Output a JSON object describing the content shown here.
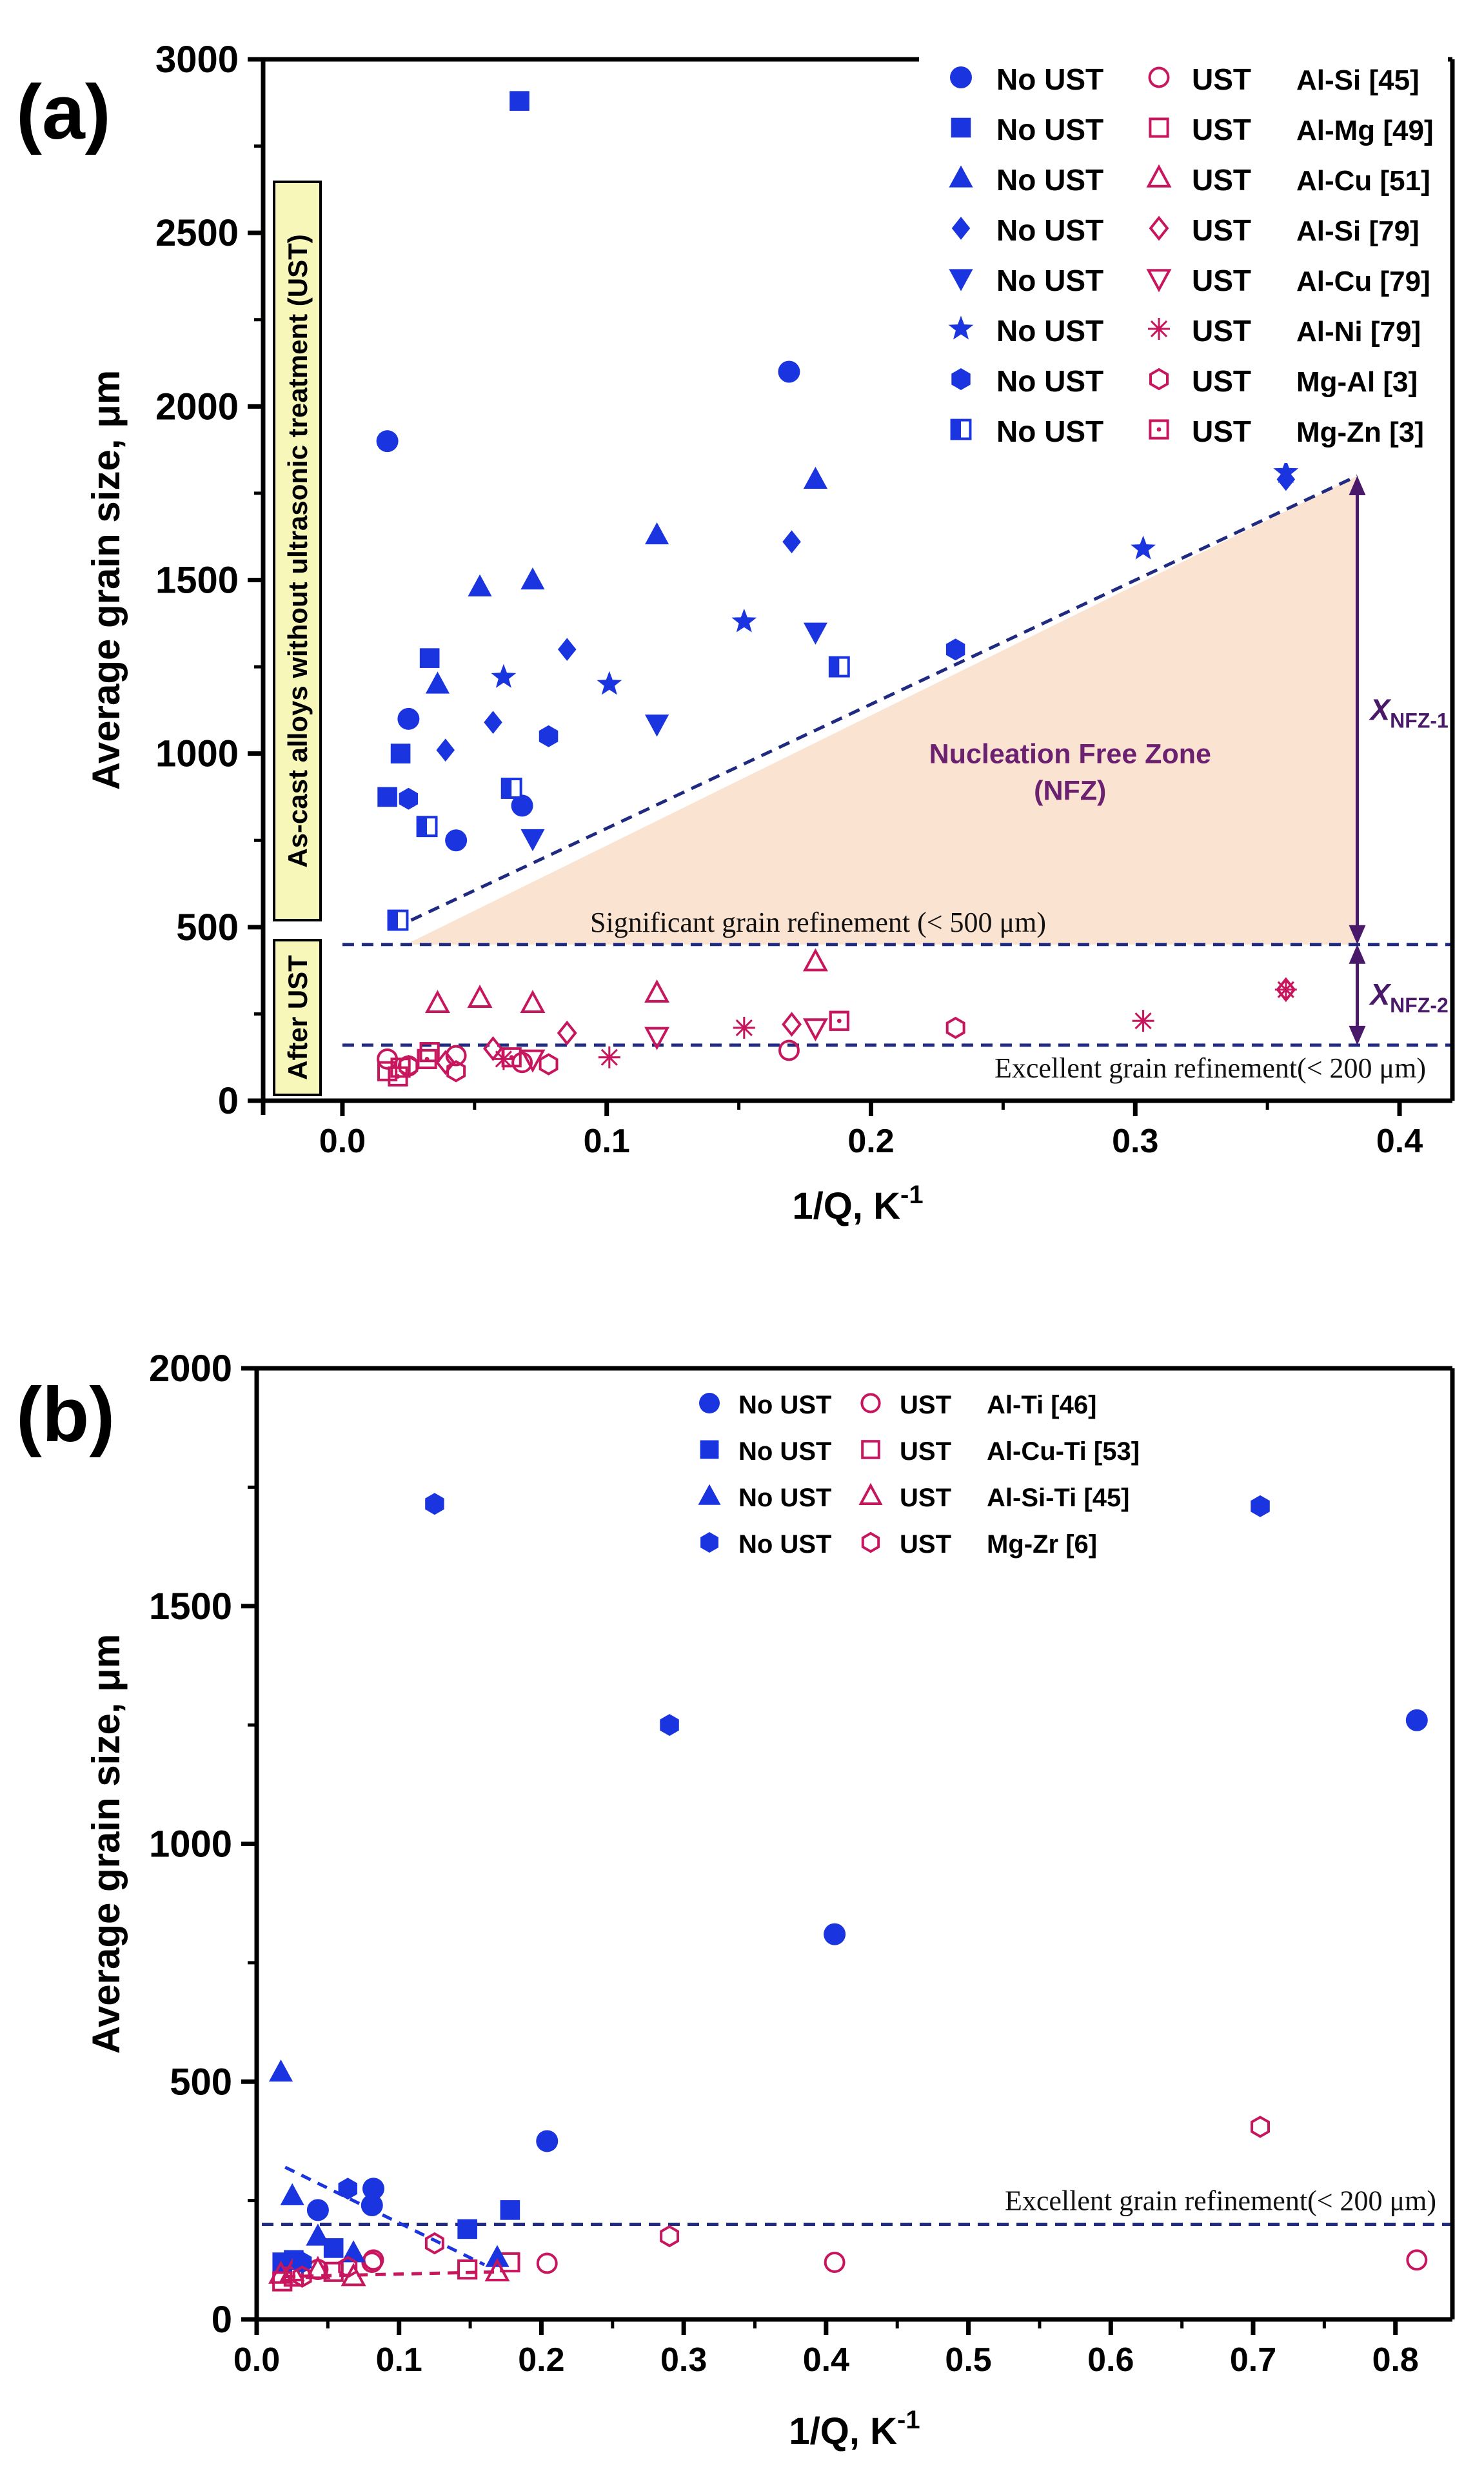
{
  "chart_data": [
    {
      "panel_label": "(a)",
      "type": "scatter",
      "xlabel": "1/Q, K",
      "xlabel_sup": "-1",
      "ylabel": "Average grain size, μm",
      "xlim": [
        -0.03,
        0.42
      ],
      "ylim": [
        0,
        3000
      ],
      "xticks": [
        0.0,
        0.1,
        0.2,
        0.3,
        0.4
      ],
      "xtick_labels": [
        "0.0",
        "0.1",
        "0.2",
        "0.3",
        "0.4"
      ],
      "yticks": [
        0,
        500,
        1000,
        1500,
        2000,
        2500,
        3000
      ],
      "ytick_labels": [
        "0",
        "500",
        "1000",
        "1500",
        "2000",
        "2500",
        "3000"
      ],
      "legend_position": "top-right",
      "series": [
        {
          "name": "No UST",
          "alloy": "Al-Si [45]",
          "marker": "circle",
          "filled": true,
          "color": "#1a35e0",
          "x": [
            0.017,
            0.025,
            0.043,
            0.068,
            0.169
          ],
          "y": [
            1900,
            1100,
            750,
            850,
            2100
          ]
        },
        {
          "name": "UST",
          "alloy": "Al-Si [45]",
          "marker": "circle",
          "filled": false,
          "color": "#c8165e",
          "x": [
            0.017,
            0.025,
            0.043,
            0.068,
            0.169
          ],
          "y": [
            120,
            100,
            130,
            110,
            145
          ]
        },
        {
          "name": "No UST",
          "alloy": "Al-Mg [49]",
          "marker": "square",
          "filled": true,
          "color": "#1a35e0",
          "x": [
            0.017,
            0.022,
            0.033,
            0.067
          ],
          "y": [
            875,
            1000,
            1275,
            2880
          ]
        },
        {
          "name": "UST",
          "alloy": "Al-Mg [49]",
          "marker": "square",
          "filled": false,
          "color": "#c8165e",
          "x": [
            0.017,
            0.022,
            0.033,
            0.188
          ],
          "y": [
            85,
            95,
            140,
            230
          ]
        },
        {
          "name": "No UST",
          "alloy": "Al-Cu [51]",
          "marker": "triangle-up",
          "filled": true,
          "color": "#1a35e0",
          "x": [
            0.036,
            0.052,
            0.072,
            0.119,
            0.179
          ],
          "y": [
            1200,
            1480,
            1500,
            1630,
            1790
          ]
        },
        {
          "name": "UST",
          "alloy": "Al-Cu [51]",
          "marker": "triangle-up",
          "filled": false,
          "color": "#c8165e",
          "x": [
            0.036,
            0.052,
            0.072,
            0.119,
            0.179
          ],
          "y": [
            280,
            295,
            280,
            310,
            400
          ]
        },
        {
          "name": "No UST",
          "alloy": "Al-Si [79]",
          "marker": "diamond",
          "filled": true,
          "color": "#1a35e0",
          "x": [
            0.039,
            0.057,
            0.085,
            0.17,
            0.357
          ],
          "y": [
            1010,
            1090,
            1300,
            1610,
            1790
          ]
        },
        {
          "name": "UST",
          "alloy": "Al-Si [79]",
          "marker": "diamond",
          "filled": false,
          "color": "#c8165e",
          "x": [
            0.039,
            0.057,
            0.085,
            0.17,
            0.357
          ],
          "y": [
            110,
            150,
            195,
            220,
            320
          ]
        },
        {
          "name": "No UST",
          "alloy": "Al-Cu [79]",
          "marker": "triangle-down",
          "filled": true,
          "color": "#1a35e0",
          "x": [
            0.072,
            0.119,
            0.179
          ],
          "y": [
            755,
            1085,
            1350
          ]
        },
        {
          "name": "UST",
          "alloy": "Al-Cu [79]",
          "marker": "triangle-down",
          "filled": false,
          "color": "#c8165e",
          "x": [
            0.072,
            0.119,
            0.179
          ],
          "y": [
            120,
            185,
            210
          ]
        },
        {
          "name": "No UST",
          "alloy": "Al-Ni [79]",
          "marker": "star",
          "filled": true,
          "color": "#1a35e0",
          "x": [
            0.061,
            0.101,
            0.152,
            0.303,
            0.357
          ],
          "y": [
            1220,
            1200,
            1380,
            1590,
            1810
          ]
        },
        {
          "name": "UST",
          "alloy": "Al-Ni [79]",
          "marker": "asterisk",
          "filled": false,
          "color": "#c8165e",
          "x": [
            0.061,
            0.101,
            0.152,
            0.303,
            0.357
          ],
          "y": [
            120,
            125,
            210,
            230,
            320
          ]
        },
        {
          "name": "No UST",
          "alloy": "Mg-Al [3]",
          "marker": "hexagon",
          "filled": true,
          "color": "#1a35e0",
          "x": [
            0.025,
            0.043,
            0.078,
            0.232
          ],
          "y": [
            870,
            750,
            1050,
            1300
          ]
        },
        {
          "name": "UST",
          "alloy": "Mg-Al [3]",
          "marker": "hexagon",
          "filled": false,
          "color": "#c8165e",
          "x": [
            0.025,
            0.043,
            0.078,
            0.232
          ],
          "y": [
            100,
            85,
            105,
            210
          ]
        },
        {
          "name": "No UST",
          "alloy": "Mg-Zn [3]",
          "marker": "half-square",
          "filled": true,
          "color": "#1a35e0",
          "x": [
            0.021,
            0.032,
            0.064,
            0.188
          ],
          "y": [
            520,
            790,
            900,
            1250
          ]
        },
        {
          "name": "UST",
          "alloy": "Mg-Zn [3]",
          "marker": "dotted-square",
          "filled": false,
          "color": "#c8165e",
          "x": [
            0.021,
            0.032,
            0.064,
            0.188
          ],
          "y": [
            70,
            120,
            125,
            230
          ]
        }
      ],
      "reference_lines": [
        {
          "y": 450,
          "label": "Significant grain refinement (< 500 μm)"
        },
        {
          "y": 160,
          "label": "Excellent grain refinement(< 200 μm)"
        }
      ],
      "nfz": {
        "label_line1": "Nucleation Free Zone",
        "label_line2": "(NFZ)",
        "corners": [
          [
            0.024,
            450
          ],
          [
            0.384,
            450
          ],
          [
            0.384,
            1800
          ]
        ]
      },
      "arrows": [
        {
          "label": "X",
          "sub": "NFZ-1",
          "x": 0.384,
          "y_from": 450,
          "y_to": 1800
        },
        {
          "label": "X",
          "sub": "NFZ-2",
          "x": 0.384,
          "y_from": 160,
          "y_to": 450
        }
      ],
      "side_labels": {
        "upper": "As-cast alloys without ultrasonic treatment (UST)",
        "lower": "After UST"
      }
    },
    {
      "panel_label": "(b)",
      "type": "scatter",
      "xlabel": "1/Q, K",
      "xlabel_sup": "-1",
      "ylabel": "Average grain size, μm",
      "xlim": [
        0.0,
        0.84
      ],
      "ylim": [
        0,
        2000
      ],
      "xticks": [
        0.0,
        0.1,
        0.2,
        0.3,
        0.4,
        0.5,
        0.6,
        0.7,
        0.8
      ],
      "xtick_labels": [
        "0.0",
        "0.1",
        "0.2",
        "0.3",
        "0.4",
        "0.5",
        "0.6",
        "0.7",
        "0.8"
      ],
      "yticks": [
        0,
        500,
        1000,
        1500,
        2000
      ],
      "ytick_labels": [
        "0",
        "500",
        "1000",
        "1500",
        "2000"
      ],
      "legend_position": "top-center",
      "series": [
        {
          "name": "No UST",
          "alloy": "Al-Ti [46]",
          "marker": "circle",
          "filled": true,
          "color": "#1a35e0",
          "x": [
            0.043,
            0.082,
            0.081,
            0.204,
            0.406,
            0.815
          ],
          "y": [
            230,
            275,
            240,
            375,
            810,
            1260
          ]
        },
        {
          "name": "UST",
          "alloy": "Al-Ti [46]",
          "marker": "circle",
          "filled": false,
          "color": "#c8165e",
          "x": [
            0.043,
            0.082,
            0.081,
            0.204,
            0.406,
            0.815
          ],
          "y": [
            105,
            125,
            120,
            118,
            120,
            125
          ]
        },
        {
          "name": "No UST",
          "alloy": "Al-Cu-Ti [53]",
          "marker": "square",
          "filled": true,
          "color": "#1a35e0",
          "x": [
            0.018,
            0.026,
            0.054,
            0.148,
            0.178
          ],
          "y": [
            120,
            125,
            150,
            190,
            230
          ]
        },
        {
          "name": "UST",
          "alloy": "Al-Cu-Ti [53]",
          "marker": "square",
          "filled": false,
          "color": "#c8165e",
          "x": [
            0.018,
            0.026,
            0.054,
            0.148,
            0.178
          ],
          "y": [
            80,
            90,
            100,
            105,
            120
          ]
        },
        {
          "name": "No UST",
          "alloy": "Al-Si-Ti [45]",
          "marker": "triangle-up",
          "filled": true,
          "color": "#1a35e0",
          "x": [
            0.017,
            0.025,
            0.043,
            0.068,
            0.169
          ],
          "y": [
            520,
            260,
            175,
            140,
            130
          ]
        },
        {
          "name": "UST",
          "alloy": "Al-Si-Ti [45]",
          "marker": "triangle-up",
          "filled": false,
          "color": "#c8165e",
          "x": [
            0.017,
            0.025,
            0.043,
            0.068,
            0.169
          ],
          "y": [
            95,
            100,
            105,
            90,
            100
          ]
        },
        {
          "name": "No UST",
          "alloy": "Mg-Zr [6]",
          "marker": "hexagon",
          "filled": true,
          "color": "#1a35e0",
          "x": [
            0.032,
            0.064,
            0.125,
            0.29,
            0.705
          ],
          "y": [
            120,
            275,
            1715,
            1250,
            1710
          ]
        },
        {
          "name": "UST",
          "alloy": "Mg-Zr [6]",
          "marker": "hexagon",
          "filled": false,
          "color": "#c8165e",
          "x": [
            0.032,
            0.064,
            0.125,
            0.29,
            0.705
          ],
          "y": [
            90,
            110,
            160,
            175,
            405
          ]
        }
      ],
      "reference_lines": [
        {
          "y": 200,
          "label": "Excellent grain refinement(< 200 μm)"
        }
      ],
      "trend_lines": [
        {
          "color": "#1a35e0",
          "x": [
            0.02,
            0.16
          ],
          "y": [
            320,
            115
          ]
        },
        {
          "color": "#c8165e",
          "x": [
            0.02,
            0.17
          ],
          "y": [
            90,
            100
          ]
        }
      ]
    }
  ]
}
